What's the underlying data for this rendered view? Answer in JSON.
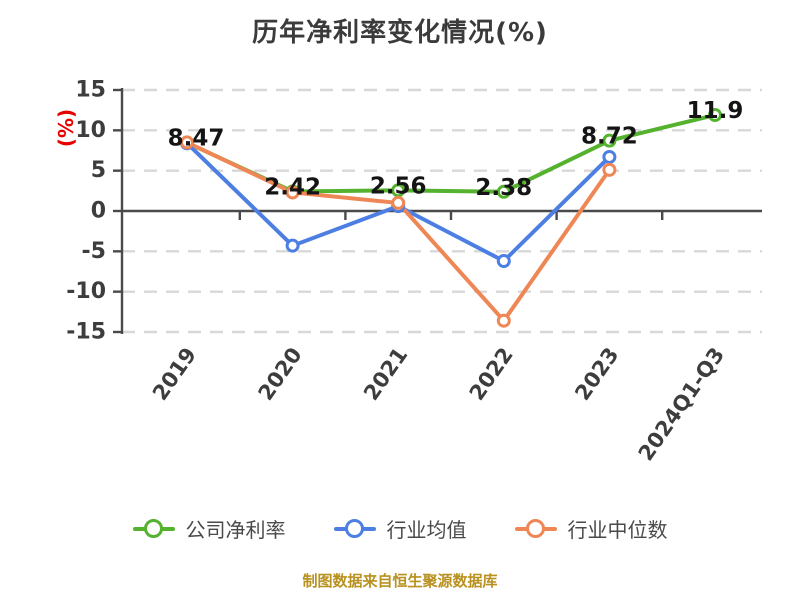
{
  "chart_data": {
    "type": "line",
    "title": "历年净利率变化情况(%)",
    "ylabel": "(%)",
    "footer": "制图数据来自恒生聚源数据库",
    "categories": [
      "2019",
      "2020",
      "2021",
      "2022",
      "2023",
      "2024Q1-Q3"
    ],
    "y_ticks": [
      15,
      10,
      5,
      0,
      -5,
      -10,
      -15
    ],
    "ylim": [
      -15,
      15
    ],
    "grid": "horizontal-dashed",
    "legend_position": "bottom",
    "series": [
      {
        "name": "公司净利率",
        "key": "company-net-margin",
        "color": "#55b22e",
        "values": [
          8.47,
          2.42,
          2.56,
          2.38,
          8.72,
          11.9
        ],
        "labels": [
          "8.47",
          "2.42",
          "2.56",
          "2.38",
          "8.72",
          "11.9"
        ]
      },
      {
        "name": "行业均值",
        "key": "industry-average",
        "color": "#4d7fe3",
        "values": [
          8.4,
          -4.3,
          0.6,
          -6.2,
          6.7,
          null
        ]
      },
      {
        "name": "行业中位数",
        "key": "industry-median",
        "color": "#ef8655",
        "values": [
          8.5,
          2.3,
          1.0,
          -13.6,
          5.1,
          null
        ]
      }
    ],
    "colors": {
      "title_text": "#3b3b3b",
      "axis": "#4a4a4a",
      "grid": "#d8d8d8",
      "tick_label": "#3d3d3d",
      "data_label": "#141414",
      "y_unit": "#e60000",
      "footer": "#b8911f"
    }
  }
}
